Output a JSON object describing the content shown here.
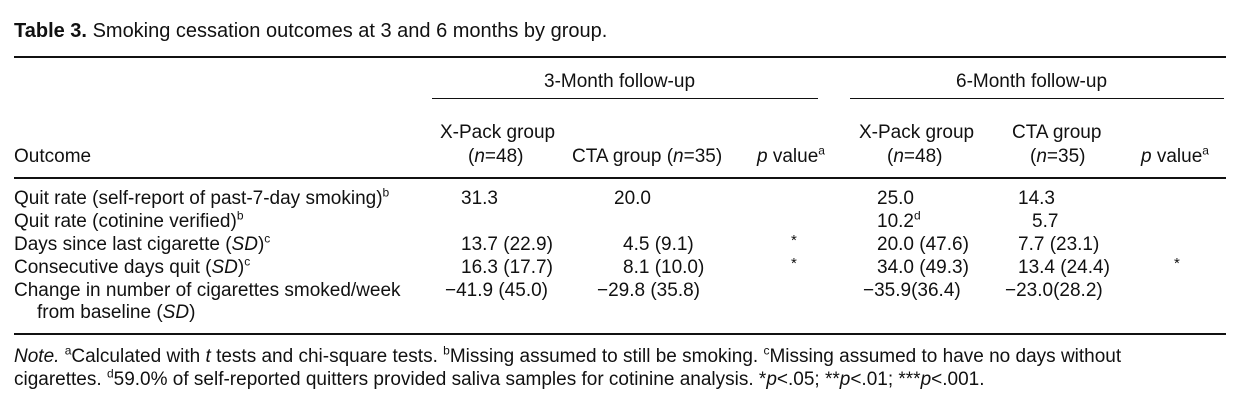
{
  "table": {
    "label": "Table 3.",
    "caption": "Smoking cessation outcomes at 3 and 6 months by group.",
    "group_headers": [
      "3-Month follow-up",
      "6-Month follow-up"
    ],
    "col_outcome": "Outcome",
    "col_xpack_line1": "X-Pack group",
    "col_xpack_n": "n",
    "col_xpack_val": "=48)",
    "col_cta3": "CTA group (",
    "col_cta3_n": "n",
    "col_cta3_val": "=35)",
    "col_p_text": " value",
    "col_p_italic": "p",
    "col_p_sup": "a",
    "col_cta6_line1": "CTA group",
    "col_cta6_n": "n",
    "col_cta6_val": "=35)",
    "rows": [
      {
        "outcome": "Quit rate (self-report of past-7-day smoking)",
        "outcome_sup": "b",
        "x3": "31.3",
        "c3": "20.0",
        "p3": "",
        "x6": "25.0",
        "c6": "14.3",
        "p6": ""
      },
      {
        "outcome": "Quit rate (cotinine verified)",
        "outcome_sup": "b",
        "x3": "",
        "c3": "",
        "p3": "",
        "x6": "10.2",
        "x6_sup": "d",
        "c6": "5.7",
        "p6": ""
      },
      {
        "outcome_pre": "Days since last cigarette (",
        "outcome_it": "SD",
        "outcome_post": ")",
        "outcome_sup": "c",
        "x3": "13.7 (22.9)",
        "c3": "4.5 (9.1)",
        "p3": "*",
        "x6": "20.0 (47.6)",
        "c6": "7.7 (23.1)",
        "p6": ""
      },
      {
        "outcome_pre": "Consecutive days quit (",
        "outcome_it": "SD",
        "outcome_post": ")",
        "outcome_sup": "c",
        "x3": "16.3 (17.7)",
        "c3": "8.1 (10.0)",
        "p3": "*",
        "x6": "34.0 (49.3)",
        "c6": "13.4 (24.4)",
        "p6": "*"
      },
      {
        "outcome_line1": "Change in number of cigarettes smoked/week",
        "outcome_line2_pre": "from baseline (",
        "outcome_it": "SD",
        "outcome_post": ")",
        "x3": "−41.9 (45.0)",
        "c3": "−29.8 (35.8)",
        "p3": "",
        "x6": "−35.9(36.4)",
        "c6": "−23.0(28.2)",
        "p6": ""
      }
    ],
    "note": {
      "label": "Note.",
      "a": "Calculated with ",
      "a_it": "t",
      "a_rest": " tests and chi-square tests.",
      "b": "Missing assumed to still be smoking.",
      "c": "Missing assumed to have no days without",
      "c2": "cigarettes.",
      "d": "59.0% of self-reported quitters provided saliva samples for cotinine analysis.",
      "sig1": "p",
      "sig1v": "<.05; **",
      "sig2": "p",
      "sig2v": "<.01; ***",
      "sig3": "p",
      "sig3v": "<.001."
    }
  }
}
